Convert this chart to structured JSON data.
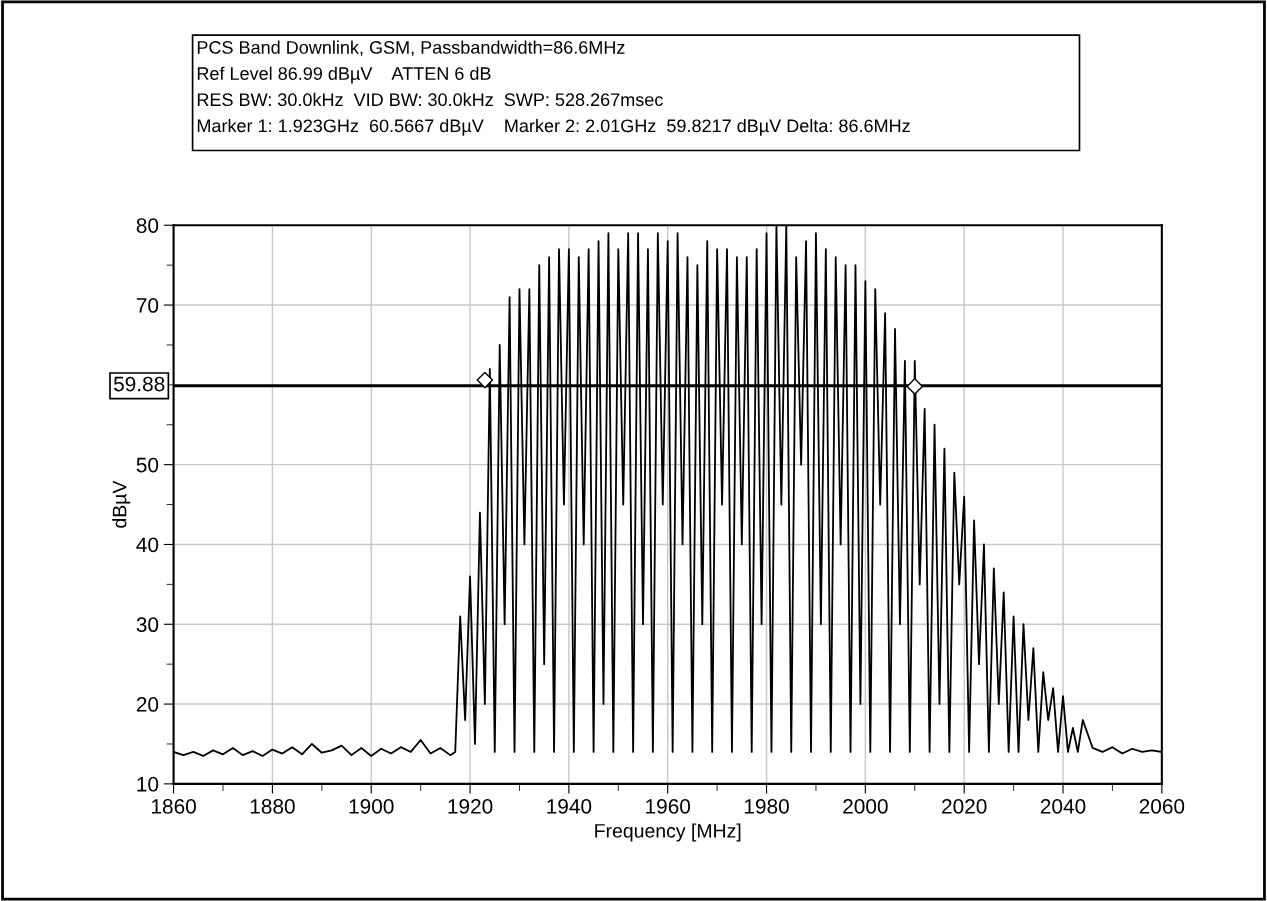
{
  "chart_data": {
    "type": "line",
    "xlabel": "Frequency [MHz]",
    "ylabel": "dBµV",
    "annotations": [
      "PCS Band Downlink, GSM, Passbandwidth=86.6MHz",
      "Ref Level 86.99 dBµV    ATTEN 6 dB",
      "RES BW: 30.0kHz  VID BW: 30.0kHz  SWP: 528.267msec",
      "Marker 1: 1.923GHz  60.5667 dBµV    Marker 2: 2.01GHz  59.8217 dBµV Delta: 86.6MHz"
    ],
    "series": [
      {
        "color": "#000000",
        "x": [
          1860,
          1862,
          1864,
          1866,
          1868,
          1870,
          1872,
          1874,
          1876,
          1878,
          1880,
          1882,
          1884,
          1886,
          1888,
          1890,
          1892,
          1894,
          1896,
          1898,
          1900,
          1902,
          1904,
          1906,
          1908,
          1910,
          1912,
          1914,
          1916,
          1917,
          1918,
          1919,
          1920,
          1921,
          1922,
          1923,
          1924,
          1925,
          1926,
          1927,
          1928,
          1929,
          1930,
          1931,
          1932,
          1933,
          1934,
          1935,
          1936,
          1937,
          1938,
          1939,
          1940,
          1941,
          1942,
          1943,
          1944,
          1945,
          1946,
          1947,
          1948,
          1949,
          1950,
          1951,
          1952,
          1953,
          1954,
          1955,
          1956,
          1957,
          1958,
          1959,
          1960,
          1961,
          1962,
          1963,
          1964,
          1965,
          1966,
          1967,
          1968,
          1969,
          1970,
          1971,
          1972,
          1973,
          1974,
          1975,
          1976,
          1977,
          1978,
          1979,
          1980,
          1981,
          1982,
          1983,
          1984,
          1985,
          1986,
          1987,
          1988,
          1989,
          1990,
          1991,
          1992,
          1993,
          1994,
          1995,
          1996,
          1997,
          1998,
          1999,
          2000,
          2001,
          2002,
          2003,
          2004,
          2005,
          2006,
          2007,
          2008,
          2009,
          2010,
          2011,
          2012,
          2013,
          2014,
          2015,
          2016,
          2017,
          2018,
          2019,
          2020,
          2021,
          2022,
          2023,
          2024,
          2025,
          2026,
          2027,
          2028,
          2029,
          2030,
          2031,
          2032,
          2033,
          2034,
          2035,
          2036,
          2037,
          2038,
          2039,
          2040,
          2041,
          2042,
          2043,
          2044,
          2046,
          2048,
          2050,
          2052,
          2054,
          2056,
          2058,
          2060
        ],
        "values": [
          14,
          13.6,
          14,
          13.5,
          14.2,
          13.7,
          14.5,
          13.6,
          14.1,
          13.5,
          14.3,
          13.8,
          14.6,
          13.7,
          15,
          13.9,
          14.2,
          14.8,
          13.6,
          14.5,
          13.5,
          14.4,
          13.8,
          14.6,
          14,
          15.5,
          13.8,
          14.5,
          13.6,
          14,
          31,
          18,
          36,
          15,
          44,
          20,
          62,
          14,
          65,
          30,
          71,
          14,
          72,
          40,
          72,
          14,
          75,
          25,
          76,
          14,
          77,
          45,
          77,
          14,
          76,
          40,
          77,
          14,
          78,
          20,
          79,
          14,
          77,
          45,
          79,
          14,
          79,
          30,
          77,
          14,
          79,
          45,
          78,
          14,
          79,
          40,
          76,
          14,
          75,
          30,
          78,
          14,
          77,
          45,
          77,
          14,
          76,
          40,
          76,
          14,
          77,
          30,
          79,
          14,
          80,
          45,
          80,
          14,
          76,
          50,
          78,
          14,
          79,
          30,
          77,
          14,
          76,
          40,
          75,
          14,
          75,
          20,
          73,
          14,
          72,
          45,
          69,
          14,
          67,
          30,
          63,
          14,
          63,
          35,
          57,
          14,
          55,
          20,
          52,
          14,
          49,
          35,
          46,
          14,
          43,
          25,
          40,
          14,
          37,
          20,
          34,
          14,
          31,
          14,
          30,
          18,
          27,
          14,
          24,
          18,
          22,
          14,
          21,
          14,
          17,
          14,
          18,
          14.5,
          14,
          14.6,
          13.8,
          14.4,
          14,
          14.2,
          14
        ]
      },
      {
        "type": "scatter",
        "marker": "diamond",
        "color": "#000000",
        "x": [
          1923,
          2010
        ],
        "values": [
          60.6,
          59.8
        ]
      }
    ],
    "xlim": [
      1860,
      2060
    ],
    "xticks": [
      1860,
      {
        "value": 1870,
        "label": null
      },
      1880,
      {
        "value": 1890,
        "label": null
      },
      1900,
      {
        "value": 1910,
        "label": null
      },
      1920,
      {
        "value": 1930,
        "label": null
      },
      1940,
      {
        "value": 1950,
        "label": null
      },
      1960,
      {
        "value": 1970,
        "label": null
      },
      1980,
      {
        "value": 1990,
        "label": null
      },
      2000,
      {
        "value": 2010,
        "label": null
      },
      2020,
      {
        "value": 2030,
        "label": null
      },
      2040,
      {
        "value": 2050,
        "label": null
      },
      2060
    ],
    "ylim": [
      10,
      80
    ],
    "yticks": [
      10,
      {
        "value": 15,
        "label": null
      },
      20,
      {
        "value": 25,
        "label": null
      },
      30,
      {
        "value": 35,
        "label": null
      },
      40,
      {
        "value": 45,
        "label": null
      },
      50,
      {
        "value": 55,
        "label": null
      },
      {
        "value": 60,
        "label": null
      },
      {
        "value": 65,
        "label": null
      },
      70,
      {
        "value": 75,
        "label": null
      },
      80
    ],
    "ref_lines": [
      {
        "axis": "y",
        "value": 59.88,
        "label": "59.88",
        "color": "#000000"
      }
    ],
    "grid": true,
    "marker": "none",
    "line_style": "solid"
  }
}
